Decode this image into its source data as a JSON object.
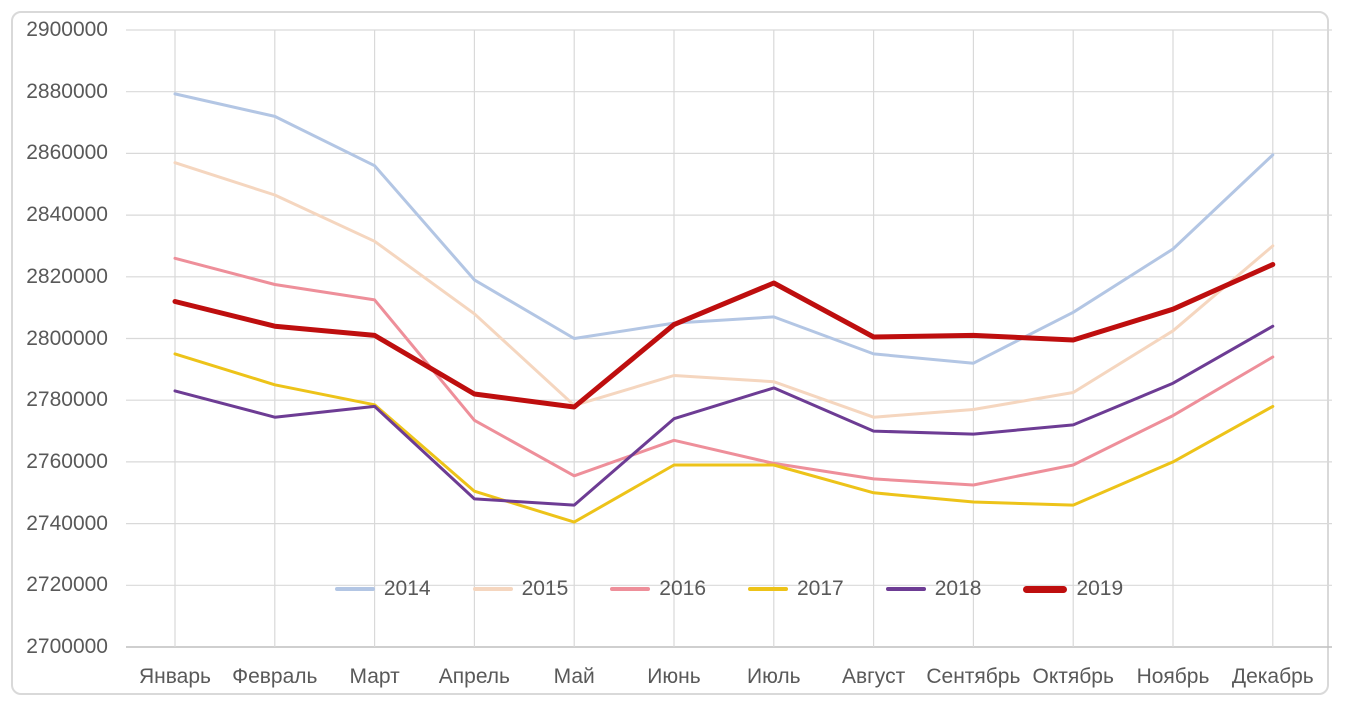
{
  "chart_data": {
    "type": "line",
    "title": "",
    "categories": [
      "Январь",
      "Февраль",
      "Март",
      "Апрель",
      "Май",
      "Июнь",
      "Июль",
      "Август",
      "Сентябрь",
      "Октябрь",
      "Ноябрь",
      "Декабрь"
    ],
    "series": [
      {
        "name": "2014",
        "color": "#B3C6E4",
        "width": 3,
        "values": [
          2879300,
          2872000,
          2856000,
          2819000,
          2800000,
          2805000,
          2807000,
          2795000,
          2792000,
          2808500,
          2829000,
          2859500
        ]
      },
      {
        "name": "2015",
        "color": "#F5D6BF",
        "width": 3,
        "values": [
          2857000,
          2846500,
          2831500,
          2808000,
          2778300,
          2788000,
          2786000,
          2774500,
          2777000,
          2782500,
          2802500,
          2830000
        ]
      },
      {
        "name": "2016",
        "color": "#EE8F9A",
        "width": 3,
        "values": [
          2826000,
          2817500,
          2812500,
          2773500,
          2755500,
          2767000,
          2759500,
          2754500,
          2752500,
          2759000,
          2775000,
          2794000
        ]
      },
      {
        "name": "2017",
        "color": "#EDC319",
        "width": 3,
        "values": [
          2795000,
          2785000,
          2778500,
          2750500,
          2740500,
          2759000,
          2759000,
          2750000,
          2747000,
          2746000,
          2760000,
          2778000
        ]
      },
      {
        "name": "2018",
        "color": "#6D3C94",
        "width": 3,
        "values": [
          2783000,
          2774500,
          2778000,
          2748000,
          2746000,
          2774000,
          2784000,
          2770000,
          2769000,
          2772000,
          2785500,
          2804000
        ]
      },
      {
        "name": "2019",
        "color": "#BE0E0E",
        "width": 5,
        "values": [
          2812000,
          2804000,
          2801000,
          2782000,
          2777800,
          2804500,
          2818000,
          2800500,
          2801000,
          2799500,
          2809500,
          2824000
        ]
      }
    ],
    "y_axis": {
      "min": 2700000,
      "max": 2900000,
      "step": 20000,
      "tick_labels": [
        "2900000",
        "2880000",
        "2860000",
        "2840000",
        "2820000",
        "2800000",
        "2780000",
        "2760000",
        "2740000",
        "2720000",
        "2700000"
      ]
    },
    "legend_position": "bottom-overlay",
    "grid": true
  },
  "colors": {
    "grid": "#D9D9D9",
    "axis_line": "#BFBFBF",
    "text": "#595959",
    "frame_border": "#D9D9D9",
    "background": "#FFFFFF"
  }
}
